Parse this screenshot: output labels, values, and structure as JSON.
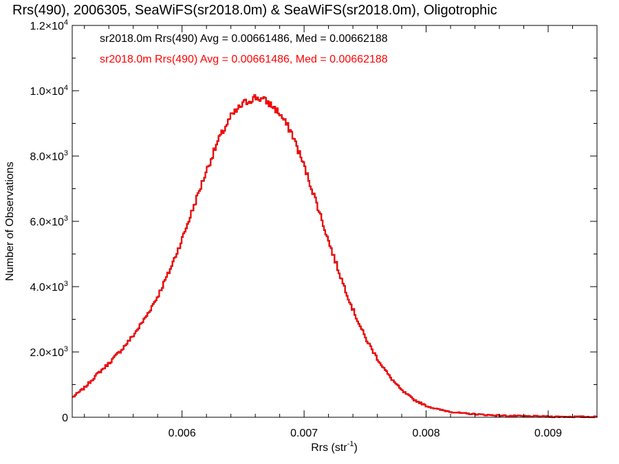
{
  "chart_data": {
    "type": "line",
    "title": "Rrs(490), 2006305, SeaWiFS(sr2018.0m) & SeaWiFS(sr2018.0m), Oligotrophic",
    "xlabel": "Rrs (str",
    "xlabel_sup": "-1",
    "xlabel_close": ")",
    "ylabel": "Number of Observations",
    "xlim": [
      0.0051,
      0.0094
    ],
    "ylim": [
      0,
      12000
    ],
    "x_ticks": [
      {
        "value": 0.006,
        "label": "0.006"
      },
      {
        "value": 0.007,
        "label": "0.007"
      },
      {
        "value": 0.008,
        "label": "0.008"
      },
      {
        "value": 0.009,
        "label": "0.009"
      }
    ],
    "y_ticks": [
      {
        "value": 0,
        "mant": "0",
        "exp": ""
      },
      {
        "value": 2000,
        "mant": "2.0×10",
        "exp": "3"
      },
      {
        "value": 4000,
        "mant": "4.0×10",
        "exp": "3"
      },
      {
        "value": 6000,
        "mant": "6.0×10",
        "exp": "3"
      },
      {
        "value": 8000,
        "mant": "8.0×10",
        "exp": "3"
      },
      {
        "value": 10000,
        "mant": "1.0×10",
        "exp": "4"
      },
      {
        "value": 12000,
        "mant": "1.2×10",
        "exp": "4"
      }
    ],
    "legend_placement": "top-left",
    "series": [
      {
        "name": "sr2018.0m Rrs(490) Avg = 0.00661486, Med = 0.00662188",
        "color": "#000000",
        "x": [
          0.0051,
          0.0052,
          0.0053,
          0.0054,
          0.0055,
          0.0056,
          0.0057,
          0.0058,
          0.0059,
          0.006,
          0.0061,
          0.0062,
          0.0063,
          0.0064,
          0.0065,
          0.00655,
          0.0066,
          0.00665,
          0.0067,
          0.00675,
          0.0068,
          0.0069,
          0.007,
          0.0071,
          0.0072,
          0.0073,
          0.0074,
          0.0075,
          0.0076,
          0.0077,
          0.0078,
          0.0079,
          0.008,
          0.0081,
          0.0082,
          0.0083,
          0.0085,
          0.0087,
          0.009,
          0.0094
        ],
        "values": [
          600,
          900,
          1300,
          1650,
          2050,
          2500,
          3050,
          3700,
          4500,
          5450,
          6500,
          7550,
          8500,
          9200,
          9600,
          9700,
          9800,
          9750,
          9650,
          9500,
          9300,
          8700,
          7700,
          6600,
          5400,
          4300,
          3300,
          2450,
          1800,
          1250,
          820,
          540,
          350,
          240,
          170,
          120,
          70,
          40,
          20,
          10
        ]
      },
      {
        "name": "sr2018.0m Rrs(490) Avg = 0.00661486, Med = 0.00662188",
        "color": "#ff0000",
        "x": [
          0.0051,
          0.0052,
          0.0053,
          0.0054,
          0.0055,
          0.0056,
          0.0057,
          0.0058,
          0.0059,
          0.006,
          0.0061,
          0.0062,
          0.0063,
          0.0064,
          0.0065,
          0.00655,
          0.0066,
          0.00665,
          0.0067,
          0.00675,
          0.0068,
          0.0069,
          0.007,
          0.0071,
          0.0072,
          0.0073,
          0.0074,
          0.0075,
          0.0076,
          0.0077,
          0.0078,
          0.0079,
          0.008,
          0.0081,
          0.0082,
          0.0083,
          0.0085,
          0.0087,
          0.009,
          0.0094
        ],
        "values": [
          600,
          900,
          1300,
          1650,
          2050,
          2500,
          3050,
          3700,
          4500,
          5450,
          6500,
          7550,
          8500,
          9200,
          9600,
          9700,
          9800,
          9750,
          9650,
          9500,
          9300,
          8700,
          7700,
          6600,
          5400,
          4300,
          3300,
          2450,
          1800,
          1250,
          820,
          540,
          350,
          240,
          170,
          120,
          70,
          40,
          20,
          10
        ]
      }
    ]
  }
}
